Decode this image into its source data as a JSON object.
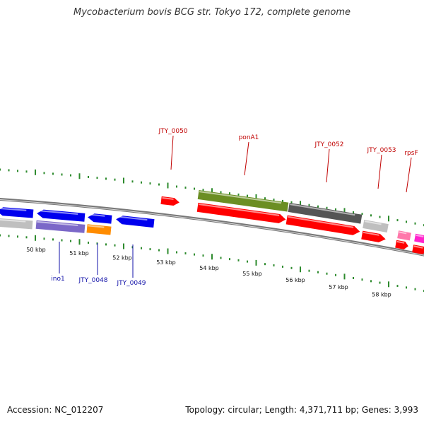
{
  "title": "Mycobacterium bovis BCG str. Tokyo 172, complete genome",
  "footer": {
    "accession": "Accession: NC_012207",
    "summary": "Topology: circular; Length: 4,371,711 bp; Genes: 3,993"
  },
  "colors": {
    "forward_red": "#ff0000",
    "blue": "#0000ee",
    "olive": "#6b8e23",
    "dark_gray": "#555555",
    "light_gray": "#bfbfbf",
    "purple": "#7b68c8",
    "orange": "#ff8c00",
    "pink": "#ff77aa",
    "magenta": "#ff22cc",
    "tick_green": "#2e8b2e",
    "backbone": "#777777"
  },
  "scale_labels": [
    "50 kbp",
    "51 kbp",
    "52 kbp",
    "53 kbp",
    "54 kbp",
    "55 kbp",
    "56 kbp",
    "57 kbp",
    "58 kbp"
  ],
  "gene_labels_top": [
    "JTY_0050",
    "ponA1",
    "JTY_0052",
    "JTY_0053",
    "rpsF"
  ],
  "gene_labels_bottom": [
    "ino1",
    "JTY_0048",
    "JTY_0049"
  ]
}
